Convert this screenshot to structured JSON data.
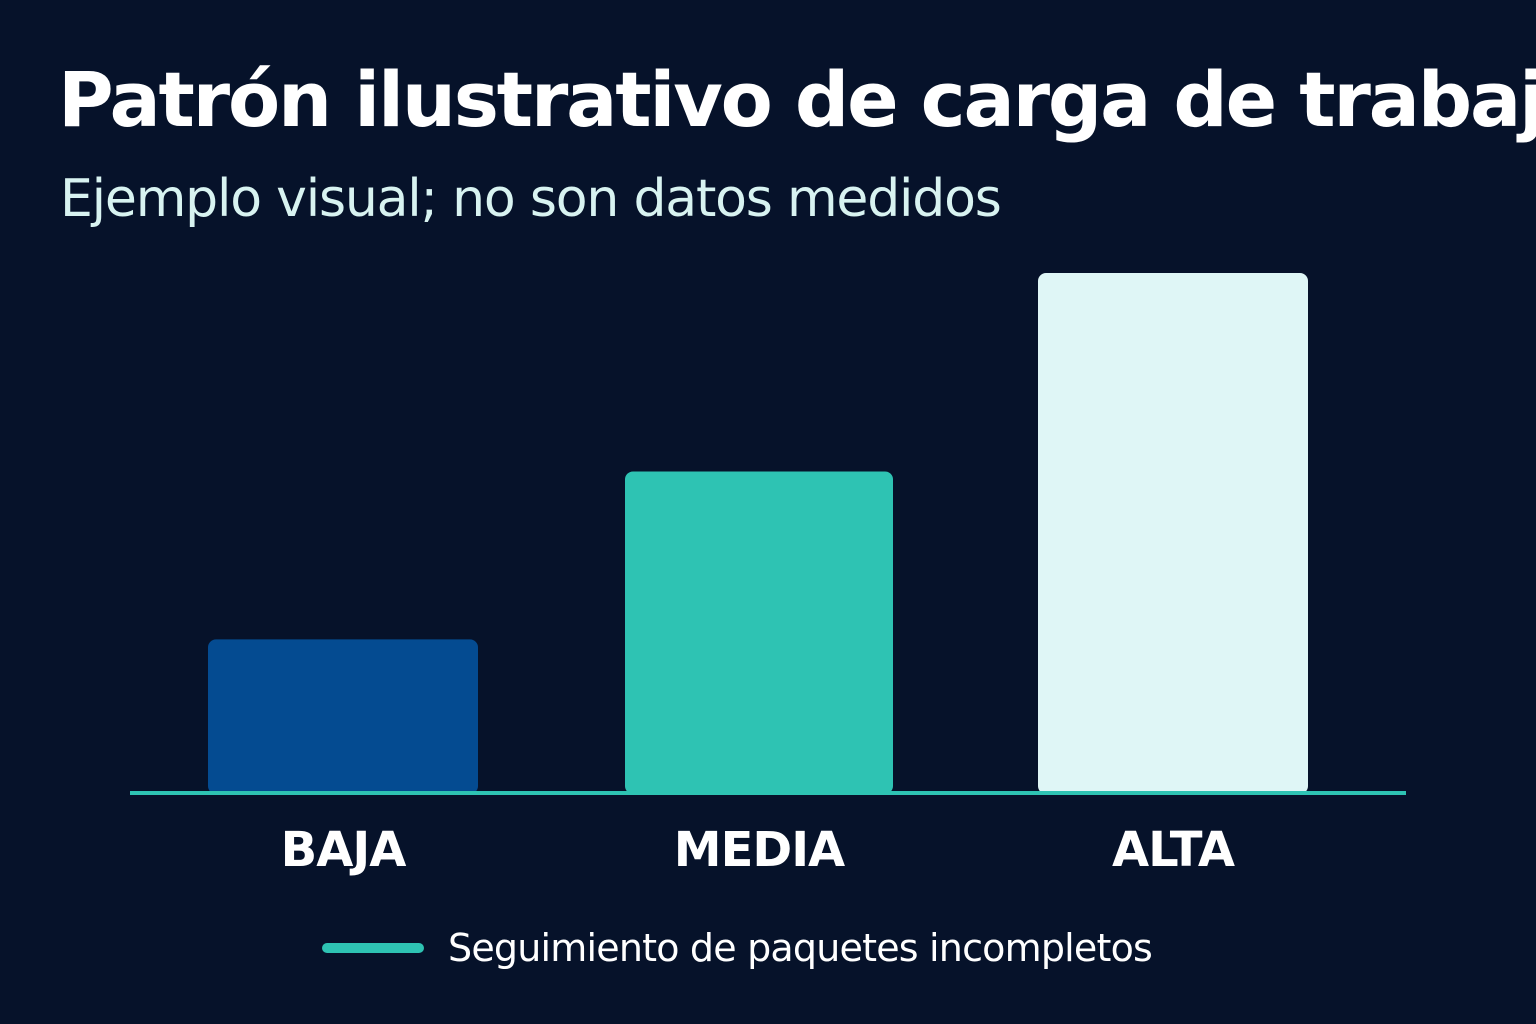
{
  "chart_data": {
    "type": "bar",
    "title": "Patrón ilustrativo de carga de trabajo",
    "subtitle": "Ejemplo visual; no son datos medidos",
    "categories": [
      "BAJA",
      "MEDIA",
      "ALTA"
    ],
    "values": [
      1,
      2.1,
      3.4
    ],
    "ylim": [
      0,
      3.4
    ],
    "xlabel": "",
    "ylabel": "",
    "grid": false,
    "legend_position": "bottom-center",
    "bar_colors": [
      "#044b91",
      "#2ec3b3",
      "#dff6f6"
    ],
    "baseline_color": "#2ec3b3",
    "series": [
      {
        "name": "Seguimiento de paquetes incompletos",
        "values": [
          1,
          2.1,
          3.4
        ],
        "color": "#2ec3b3"
      }
    ]
  }
}
